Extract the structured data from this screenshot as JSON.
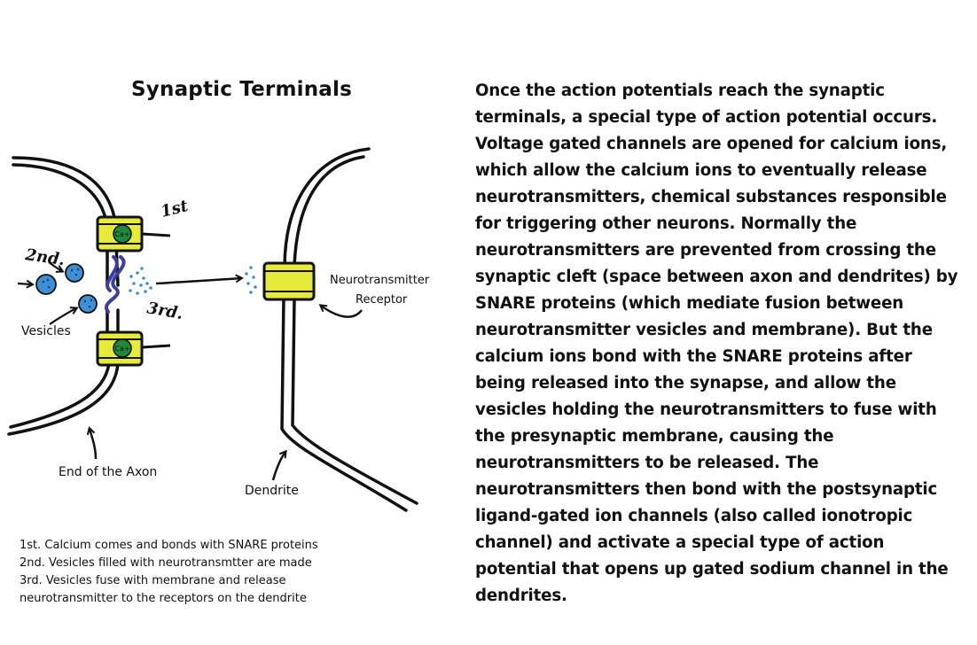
{
  "title": "Synaptic Terminals",
  "labels": {
    "first": "1st",
    "second": "2nd.",
    "third": "3rd.",
    "vesicles": "Vesicles",
    "end_of_axon": "End of the Axon",
    "receptor_line1": "Neurotransmitter",
    "receptor_line2": "Receptor",
    "dendrite": "Dendrite",
    "ion_top": "Ca+",
    "ion_bottom": "Ca+"
  },
  "steps": [
    "1st. Calcium comes and bonds with SNARE proteins",
    "2nd. Vesicles filled with neurotransmtter are made",
    "3rd. Vesicles fuse with membrane and release",
    "neurotransmitter to the receptors on the dendrite"
  ],
  "explanation": "Once the action potentials reach the synaptic terminals, a special type of action potential occurs. Voltage gated channels are opened for calcium ions, which allow the calcium ions to eventually release neurotransmitters, chemical substances responsible for triggering other neurons. Normally the neurotransmitters are prevented from crossing the synaptic cleft (space between axon and dendrites) by SNARE proteins (which mediate fusion between neurotransmitter vesicles and membrane). But the calcium ions bond with the SNARE proteins after being released into the synapse, and allow the vesicles holding the neurotransmitters to fuse with the presynaptic membrane, causing the neurotransmitters to be released. The neurotransmitters then bond with the postsynaptic ligand-gated ion channels (also called ionotropic channel) and activate a special type of action potential that opens up gated sodium channel in the dendrites.",
  "colors": {
    "channel": "#e6ea3a",
    "ion": "#1f8a3a",
    "vesicle": "#3d8fd6",
    "snare": "#3b3f9a",
    "ink": "#111111"
  }
}
